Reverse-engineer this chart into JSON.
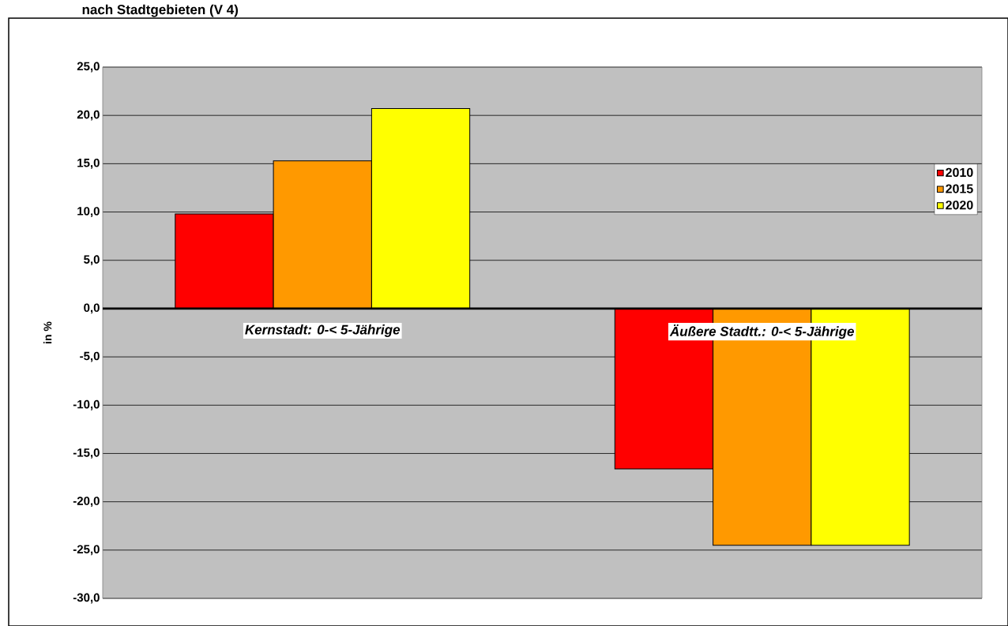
{
  "chart_data": {
    "type": "bar",
    "title": "nach Stadtgebieten (V 4)",
    "ylabel": "in %",
    "categories": [
      "Kernstadt: 0-< 5-Jährige",
      "Äußere Stadtt.: 0-< 5-Jährige"
    ],
    "series": [
      {
        "name": "2010",
        "color": "#ff0000",
        "values": [
          9.8,
          -16.6
        ]
      },
      {
        "name": "2015",
        "color": "#ff9900",
        "values": [
          15.3,
          -24.5
        ]
      },
      {
        "name": "2020",
        "color": "#ffff00",
        "values": [
          20.7,
          -24.5
        ]
      }
    ],
    "ylim": [
      -30,
      25
    ],
    "yticks": [
      {
        "value": -30,
        "label": "-30,0"
      },
      {
        "value": -25,
        "label": "-25,0"
      },
      {
        "value": -20,
        "label": "-20,0"
      },
      {
        "value": -15,
        "label": "-15,0"
      },
      {
        "value": -10,
        "label": "-10,0"
      },
      {
        "value": -5,
        "label": "-5,0"
      },
      {
        "value": 0,
        "label": "0,0"
      },
      {
        "value": 5,
        "label": "5,0"
      },
      {
        "value": 10,
        "label": "10,0"
      },
      {
        "value": 15,
        "label": "15,0"
      },
      {
        "value": 20,
        "label": "20,0"
      },
      {
        "value": 25,
        "label": "25,0"
      }
    ],
    "grid": "y",
    "legend": "right"
  }
}
